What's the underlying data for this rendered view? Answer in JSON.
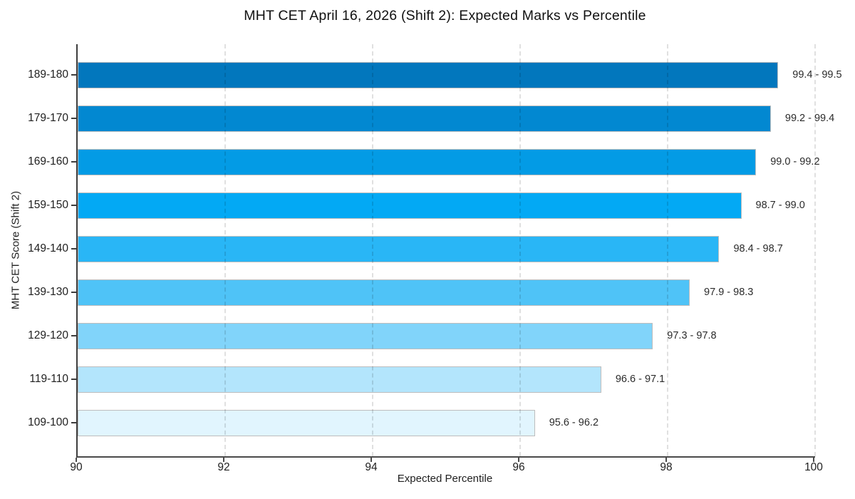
{
  "chart_data": {
    "type": "bar",
    "orientation": "horizontal",
    "title": "MHT CET April 16, 2026 (Shift 2): Expected Marks vs Percentile",
    "xlabel": "Expected Percentile",
    "ylabel": "MHT CET Score (Shift 2)",
    "xlim": [
      90,
      100
    ],
    "xticks": [
      "90",
      "92",
      "94",
      "96",
      "98",
      "100"
    ],
    "grid": "vertical dashed gridlines at x ticks, drawn over bars",
    "legend": "none",
    "categories": [
      "189-180",
      "179-170",
      "169-160",
      "159-150",
      "149-140",
      "139-130",
      "129-120",
      "119-110",
      "109-100"
    ],
    "values": [
      99.5,
      99.4,
      99.2,
      99.0,
      98.7,
      98.3,
      97.8,
      97.1,
      96.2
    ],
    "bar_labels": [
      "99.4 - 99.5",
      "99.2 - 99.4",
      "99.0 - 99.2",
      "98.7 - 99.0",
      "98.4 - 98.7",
      "97.9 - 98.3",
      "97.3 - 97.8",
      "96.6 - 97.1",
      "95.6 - 96.2"
    ],
    "bar_colors": [
      "#0277bd",
      "#0288d1",
      "#039be5",
      "#03a9f4",
      "#29b6f6",
      "#4fc3f7",
      "#81d4fa",
      "#b3e5fc",
      "#e1f5fe"
    ],
    "colors": {
      "bar_edge": "#bdbdbd",
      "grid": "rgba(0,0,0,0.12)",
      "axis": "#3d3d3d",
      "text": "#1f1f1f",
      "background": "#ffffff"
    }
  }
}
